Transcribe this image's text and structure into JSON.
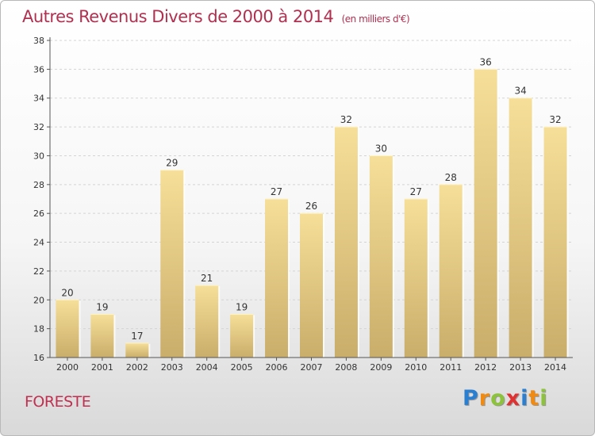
{
  "title": "Autres Revenus Divers de 2000 à 2014",
  "subtitle": "(en milliers d'€)",
  "commune": "FORESTE",
  "logo": {
    "text": "Proxiti",
    "letters": [
      {
        "ch": "P",
        "color": "#2a7fd0"
      },
      {
        "ch": "r",
        "color": "#f08a10"
      },
      {
        "ch": "o",
        "color": "#8dc33a"
      },
      {
        "ch": "x",
        "color": "#e03030"
      },
      {
        "ch": "i",
        "color": "#2a7fd0"
      },
      {
        "ch": "t",
        "color": "#f08a10"
      },
      {
        "ch": "i",
        "color": "#8dc33a"
      }
    ]
  },
  "chart_data": {
    "type": "bar",
    "categories": [
      "2000",
      "2001",
      "2002",
      "2003",
      "2004",
      "2005",
      "2006",
      "2007",
      "2008",
      "2009",
      "2010",
      "2011",
      "2012",
      "2013",
      "2014"
    ],
    "values": [
      20,
      19,
      17,
      29,
      21,
      19,
      27,
      26,
      32,
      30,
      27,
      28,
      36,
      34,
      32
    ],
    "ylim": [
      16,
      38
    ],
    "yticks": [
      16,
      18,
      20,
      22,
      24,
      26,
      28,
      30,
      32,
      34,
      36,
      38
    ],
    "grid": true,
    "bar_color": "#e8cf86"
  }
}
